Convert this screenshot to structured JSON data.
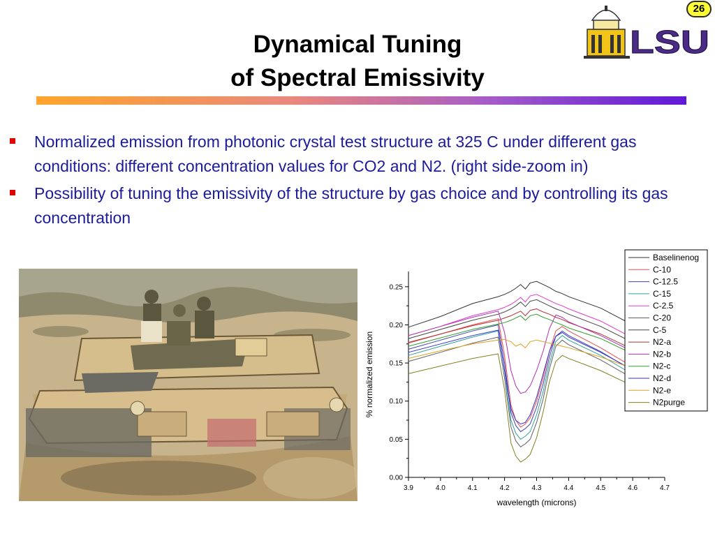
{
  "slide": {
    "title_line1": "Dynamical Tuning",
    "title_line2": "of Spectral Emissivity",
    "page_number": "26",
    "logo_text": "LSU"
  },
  "bullets": [
    "Normalized emission from photonic crystal test structure at 325 C under different gas conditions:   different concentration values for CO2 and N2. (right side-zoom in)",
    "Possibility of tuning the emissivity of the structure by gas choice and by controlling its gas concentration"
  ],
  "colors": {
    "bullet_text": "#1b1b9c",
    "bullet_mark": "#e00000",
    "rule_start": "#ffa52a",
    "rule_end": "#5f18d8",
    "logo_purple": "#4a2c86",
    "logo_gold": "#f2c418"
  },
  "chart_data": {
    "type": "line",
    "title": "",
    "xlabel": "wavelength (microns)",
    "ylabel": "% normalized emission",
    "xlim": [
      3.9,
      4.7
    ],
    "ylim": [
      0.0,
      0.27
    ],
    "xticks": [
      3.9,
      4.0,
      4.1,
      4.2,
      4.3,
      4.4,
      4.5,
      4.6,
      4.7
    ],
    "yticks": [
      0.0,
      0.05,
      0.1,
      0.15,
      0.2,
      0.25
    ],
    "xtick_labels": [
      "3.9",
      "4.0",
      "4.1",
      "4.2",
      "4.3",
      "4.4",
      "4.5",
      "4.6",
      "4.7"
    ],
    "ytick_labels": [
      "0.00",
      "0.05",
      "0.10",
      "0.15",
      "0.20",
      "0.25"
    ],
    "grid": false,
    "legend_position": "top-right",
    "x": [
      3.9,
      4.0,
      4.1,
      4.18,
      4.2,
      4.22,
      4.235,
      4.25,
      4.265,
      4.28,
      4.3,
      4.32,
      4.34,
      4.36,
      4.38,
      4.4,
      4.5,
      4.6,
      4.7
    ],
    "series": [
      {
        "name": "Baselinenog",
        "color": "#333333",
        "values": [
          0.197,
          0.211,
          0.228,
          0.237,
          0.24,
          0.244,
          0.248,
          0.253,
          0.247,
          0.255,
          0.257,
          0.253,
          0.249,
          0.244,
          0.241,
          0.237,
          0.222,
          0.2,
          0.178
        ]
      },
      {
        "name": "C-10",
        "color": "#e85050",
        "values": [
          0.176,
          0.188,
          0.2,
          0.208,
          0.16,
          0.095,
          0.075,
          0.066,
          0.07,
          0.078,
          0.1,
          0.13,
          0.165,
          0.192,
          0.198,
          0.192,
          0.17,
          0.145,
          0.12
        ]
      },
      {
        "name": "C-12.5",
        "color": "#4040b0",
        "values": [
          0.168,
          0.18,
          0.192,
          0.2,
          0.15,
          0.085,
          0.068,
          0.06,
          0.064,
          0.07,
          0.092,
          0.122,
          0.158,
          0.185,
          0.192,
          0.186,
          0.165,
          0.14,
          0.115
        ]
      },
      {
        "name": "C-15",
        "color": "#30a0a0",
        "values": [
          0.16,
          0.172,
          0.184,
          0.192,
          0.14,
          0.075,
          0.058,
          0.05,
          0.054,
          0.06,
          0.082,
          0.112,
          0.15,
          0.178,
          0.186,
          0.18,
          0.16,
          0.135,
          0.11
        ]
      },
      {
        "name": "C-2.5",
        "color": "#e040d0",
        "values": [
          0.186,
          0.198,
          0.212,
          0.22,
          0.223,
          0.227,
          0.231,
          0.236,
          0.23,
          0.238,
          0.24,
          0.236,
          0.232,
          0.228,
          0.225,
          0.221,
          0.205,
          0.183,
          0.16
        ]
      },
      {
        "name": "C-20",
        "color": "#606060",
        "values": [
          0.152,
          0.164,
          0.176,
          0.184,
          0.13,
          0.066,
          0.048,
          0.04,
          0.044,
          0.05,
          0.072,
          0.102,
          0.142,
          0.172,
          0.18,
          0.174,
          0.154,
          0.13,
          0.105
        ]
      },
      {
        "name": "C-5",
        "color": "#444444",
        "values": [
          0.182,
          0.194,
          0.206,
          0.214,
          0.217,
          0.221,
          0.225,
          0.23,
          0.224,
          0.231,
          0.233,
          0.229,
          0.225,
          0.221,
          0.218,
          0.214,
          0.198,
          0.177,
          0.155
        ]
      },
      {
        "name": "N2-a",
        "color": "#b03030",
        "values": [
          0.177,
          0.188,
          0.199,
          0.206,
          0.209,
          0.212,
          0.215,
          0.218,
          0.212,
          0.219,
          0.221,
          0.217,
          0.214,
          0.21,
          0.207,
          0.203,
          0.188,
          0.168,
          0.148
        ]
      },
      {
        "name": "N2-b",
        "color": "#b030b0",
        "values": [
          0.186,
          0.198,
          0.21,
          0.218,
          0.19,
          0.14,
          0.12,
          0.11,
          0.112,
          0.12,
          0.14,
          0.165,
          0.195,
          0.213,
          0.21,
          0.204,
          0.186,
          0.165,
          0.143
        ]
      },
      {
        "name": "N2-c",
        "color": "#30a030",
        "values": [
          0.172,
          0.183,
          0.194,
          0.201,
          0.203,
          0.206,
          0.209,
          0.212,
          0.206,
          0.212,
          0.214,
          0.21,
          0.207,
          0.203,
          0.2,
          0.196,
          0.182,
          0.162,
          0.142
        ]
      },
      {
        "name": "N2-d",
        "color": "#3030d0",
        "values": [
          0.164,
          0.175,
          0.186,
          0.193,
          0.14,
          0.09,
          0.075,
          0.07,
          0.072,
          0.082,
          0.105,
          0.135,
          0.165,
          0.185,
          0.19,
          0.184,
          0.164,
          0.141,
          0.118
        ]
      },
      {
        "name": "N2-e",
        "color": "#e0a020",
        "values": [
          0.156,
          0.166,
          0.175,
          0.18,
          0.181,
          0.178,
          0.172,
          0.175,
          0.17,
          0.178,
          0.18,
          0.178,
          0.176,
          0.174,
          0.172,
          0.17,
          0.158,
          0.143,
          0.127
        ]
      },
      {
        "name": "N2purge",
        "color": "#808020",
        "values": [
          0.136,
          0.146,
          0.156,
          0.162,
          0.115,
          0.045,
          0.028,
          0.02,
          0.024,
          0.03,
          0.052,
          0.085,
          0.125,
          0.152,
          0.16,
          0.156,
          0.14,
          0.12,
          0.098
        ]
      }
    ]
  }
}
